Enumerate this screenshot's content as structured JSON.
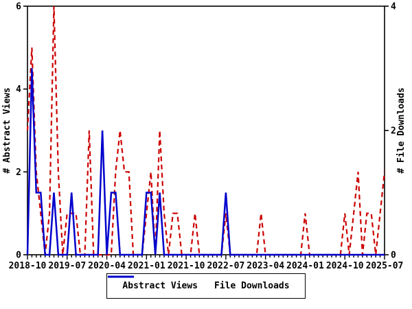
{
  "chart_data": {
    "type": "line",
    "title": "",
    "x": [
      "2018-10",
      "2018-11",
      "2018-12",
      "2019-01",
      "2019-02",
      "2019-03",
      "2019-04",
      "2019-05",
      "2019-06",
      "2019-07",
      "2019-08",
      "2019-09",
      "2019-10",
      "2019-11",
      "2019-12",
      "2020-01",
      "2020-02",
      "2020-03",
      "2020-04",
      "2020-05",
      "2020-06",
      "2020-07",
      "2020-08",
      "2020-09",
      "2020-10",
      "2020-11",
      "2020-12",
      "2021-01",
      "2021-02",
      "2021-03",
      "2021-04",
      "2021-05",
      "2021-06",
      "2021-07",
      "2021-08",
      "2021-09",
      "2021-10",
      "2021-11",
      "2021-12",
      "2022-01",
      "2022-02",
      "2022-03",
      "2022-04",
      "2022-05",
      "2022-06",
      "2022-07",
      "2022-08",
      "2022-09",
      "2022-10",
      "2022-11",
      "2022-12",
      "2023-01",
      "2023-02",
      "2023-03",
      "2023-04",
      "2023-05",
      "2023-06",
      "2023-07",
      "2023-08",
      "2023-09",
      "2023-10",
      "2023-11",
      "2023-12",
      "2024-01",
      "2024-02",
      "2024-03",
      "2024-04",
      "2024-05",
      "2024-06",
      "2024-07",
      "2024-08",
      "2024-09",
      "2024-10",
      "2024-11",
      "2024-12",
      "2025-01",
      "2025-02",
      "2025-03",
      "2025-04",
      "2025-05",
      "2025-06",
      "2025-07"
    ],
    "series": [
      {
        "name": "Abstract Views",
        "axis": "left",
        "color": "#cc0000",
        "style": "dashed",
        "values": [
          3,
          5,
          2,
          1,
          0,
          1,
          6,
          2,
          0,
          1,
          1,
          1,
          0,
          0,
          3,
          0,
          0,
          0,
          0,
          0,
          2,
          3,
          2,
          2,
          0,
          0,
          0,
          1,
          2,
          0,
          3,
          1,
          0,
          1,
          1,
          0,
          0,
          0,
          1,
          0,
          0,
          0,
          0,
          0,
          0,
          1,
          0,
          0,
          0,
          0,
          0,
          0,
          0,
          1,
          0,
          0,
          0,
          0,
          0,
          0,
          0,
          0,
          0,
          1,
          0,
          0,
          0,
          0,
          0,
          0,
          0,
          0,
          1,
          0,
          1,
          2,
          0,
          1,
          1,
          0,
          1,
          2
        ]
      },
      {
        "name": "File Downloads",
        "axis": "right",
        "color": "#0000cc",
        "style": "solid",
        "values": [
          0,
          3,
          1,
          1,
          0,
          0,
          1,
          0,
          0,
          0,
          1,
          0,
          0,
          0,
          0,
          0,
          0,
          2,
          0,
          1,
          1,
          0,
          0,
          0,
          0,
          0,
          0,
          1,
          1,
          0,
          1,
          0,
          0,
          0,
          0,
          0,
          0,
          0,
          0,
          0,
          0,
          0,
          0,
          0,
          0,
          1,
          0,
          0,
          0,
          0,
          0,
          0,
          0,
          0,
          0,
          0,
          0,
          0,
          0,
          0,
          0,
          0,
          0,
          0,
          0,
          0,
          0,
          0,
          0,
          0,
          0,
          0,
          0,
          0,
          0,
          0,
          0,
          0,
          0,
          0,
          0,
          0
        ]
      }
    ],
    "left_axis": {
      "label": "# Abstract Views",
      "min": 0,
      "max": 6,
      "ticks": [
        0,
        2,
        4,
        6
      ]
    },
    "right_axis": {
      "label": "# File Downloads",
      "min": 0,
      "max": 4,
      "ticks": [
        0,
        2,
        4
      ]
    },
    "x_axis": {
      "tick_label_indices": [
        0,
        9,
        18,
        27,
        36,
        45,
        54,
        63,
        72,
        81
      ]
    },
    "legend": {
      "position": "bottom-center"
    },
    "grid": "off",
    "frame_color": "#000000"
  }
}
